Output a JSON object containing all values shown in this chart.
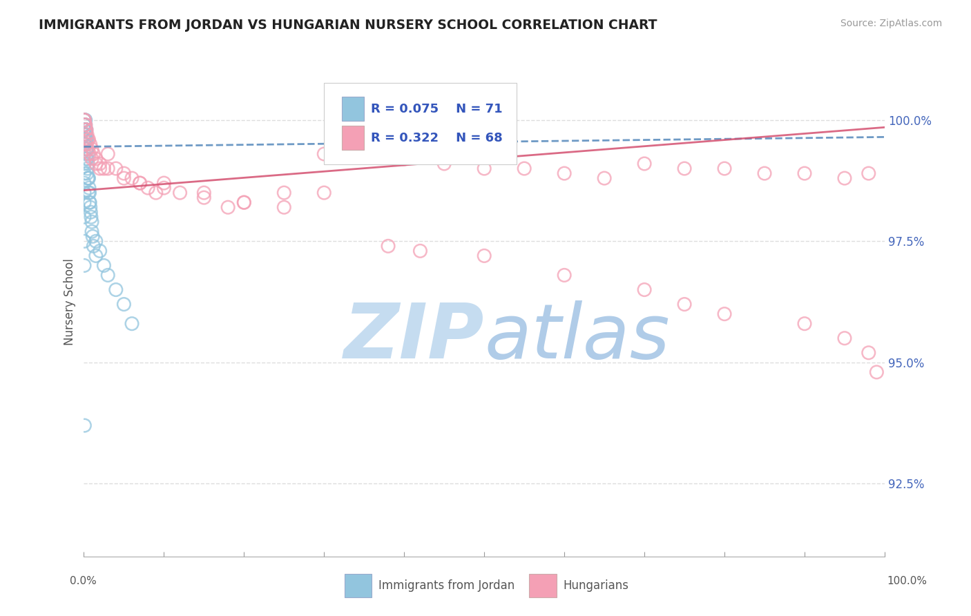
{
  "title": "IMMIGRANTS FROM JORDAN VS HUNGARIAN NURSERY SCHOOL CORRELATION CHART",
  "source": "Source: ZipAtlas.com",
  "ylabel": "Nursery School",
  "ytick_labels": [
    "92.5%",
    "95.0%",
    "97.5%",
    "100.0%"
  ],
  "ytick_values": [
    92.5,
    95.0,
    97.5,
    100.0
  ],
  "legend_label1": "Immigrants from Jordan",
  "legend_label2": "Hungarians",
  "r1": 0.075,
  "n1": 71,
  "r2": 0.322,
  "n2": 68,
  "color1": "#92C5DE",
  "color2": "#F4A0B5",
  "trendline1_color": "#5588BB",
  "trendline2_color": "#D45070",
  "background_color": "#ffffff",
  "watermark_zip_color": "#C5DCF0",
  "watermark_atlas_color": "#B0CCE8",
  "title_color": "#222222",
  "axis_label_color": "#555555",
  "grid_color": "#DDDDDD",
  "tick_label_color": "#4466BB",
  "legend_text_color": "#3355BB",
  "xlim": [
    0,
    100
  ],
  "ylim": [
    91.0,
    101.5
  ],
  "scatter1_x": [
    0.05,
    0.05,
    0.05,
    0.05,
    0.05,
    0.05,
    0.05,
    0.05,
    0.1,
    0.1,
    0.1,
    0.1,
    0.1,
    0.15,
    0.15,
    0.15,
    0.15,
    0.2,
    0.2,
    0.2,
    0.2,
    0.2,
    0.25,
    0.25,
    0.25,
    0.3,
    0.3,
    0.3,
    0.3,
    0.35,
    0.35,
    0.4,
    0.4,
    0.4,
    0.45,
    0.5,
    0.5,
    0.5,
    0.55,
    0.6,
    0.6,
    0.65,
    0.7,
    0.7,
    0.75,
    0.8,
    0.85,
    0.9,
    1.0,
    1.0,
    1.1,
    1.2,
    1.5,
    1.5,
    2.0,
    2.5,
    3.0,
    4.0,
    5.0,
    6.0,
    0.05,
    0.05,
    0.05,
    0.05,
    0.05,
    0.05,
    0.05,
    0.05,
    0.05,
    0.05,
    0.08
  ],
  "scatter1_y": [
    100.0,
    100.0,
    99.9,
    99.9,
    99.8,
    99.8,
    99.7,
    99.6,
    100.0,
    99.9,
    99.8,
    99.7,
    99.6,
    99.9,
    99.8,
    99.7,
    99.5,
    100.0,
    99.9,
    99.8,
    99.7,
    99.5,
    99.8,
    99.7,
    99.5,
    99.8,
    99.6,
    99.4,
    99.2,
    99.6,
    99.4,
    99.4,
    99.2,
    98.9,
    99.0,
    99.3,
    99.1,
    98.8,
    98.8,
    98.8,
    98.5,
    98.6,
    98.5,
    98.3,
    98.3,
    98.2,
    98.1,
    98.0,
    97.9,
    97.7,
    97.6,
    97.4,
    97.5,
    97.2,
    97.3,
    97.0,
    96.8,
    96.5,
    96.2,
    95.8,
    99.5,
    99.3,
    99.1,
    98.9,
    98.7,
    98.5,
    98.3,
    98.0,
    97.5,
    97.0,
    93.7
  ],
  "scatter2_x": [
    0.05,
    0.1,
    0.15,
    0.2,
    0.25,
    0.3,
    0.4,
    0.5,
    0.6,
    0.8,
    1.0,
    1.2,
    1.5,
    2.0,
    2.5,
    3.0,
    4.0,
    5.0,
    6.0,
    7.0,
    8.0,
    9.0,
    10.0,
    12.0,
    15.0,
    18.0,
    20.0,
    25.0,
    30.0,
    35.0,
    40.0,
    45.0,
    50.0,
    55.0,
    60.0,
    65.0,
    70.0,
    75.0,
    80.0,
    85.0,
    90.0,
    95.0,
    98.0,
    0.3,
    0.5,
    0.7,
    1.0,
    1.5,
    2.0,
    3.0,
    5.0,
    7.0,
    10.0,
    15.0,
    20.0,
    25.0,
    30.0,
    38.0,
    42.0,
    50.0,
    60.0,
    70.0,
    75.0,
    80.0,
    90.0,
    95.0,
    98.0,
    99.0
  ],
  "scatter2_y": [
    100.0,
    100.0,
    99.9,
    99.9,
    99.8,
    99.8,
    99.7,
    99.6,
    99.6,
    99.5,
    99.4,
    99.3,
    99.2,
    99.1,
    99.0,
    99.3,
    99.0,
    98.9,
    98.8,
    98.7,
    98.6,
    98.5,
    98.7,
    98.5,
    98.5,
    98.2,
    98.3,
    98.5,
    99.3,
    99.3,
    99.2,
    99.1,
    99.0,
    99.0,
    98.9,
    98.8,
    99.1,
    99.0,
    99.0,
    98.9,
    98.9,
    98.8,
    98.9,
    99.5,
    99.4,
    99.3,
    99.2,
    99.1,
    99.0,
    99.0,
    98.8,
    98.7,
    98.6,
    98.4,
    98.3,
    98.2,
    98.5,
    97.4,
    97.3,
    97.2,
    96.8,
    96.5,
    96.2,
    96.0,
    95.8,
    95.5,
    95.2,
    94.8
  ],
  "trendline1_x": [
    0,
    100
  ],
  "trendline1_y": [
    99.45,
    99.65
  ],
  "trendline2_x": [
    0,
    100
  ],
  "trendline2_y": [
    98.55,
    99.85
  ]
}
